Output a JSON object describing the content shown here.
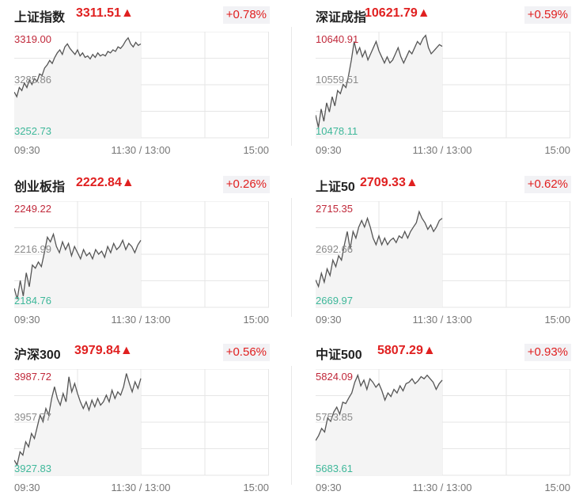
{
  "x_axis": {
    "start": "09:30",
    "mid": "11:30 / 13:00",
    "end": "15:00"
  },
  "colors": {
    "up": "#e02020",
    "line": "#555555",
    "grid": "#e6e6e6",
    "fill": "#f4f4f4"
  },
  "cards": [
    {
      "name": "上证指数",
      "price": "3311.51",
      "arrow": "▲",
      "change": "+0.78%",
      "y_top": "3319.00",
      "y_mid": "3285.86",
      "y_bot": "3252.73",
      "series": [
        3281,
        3278,
        3284,
        3282,
        3287,
        3284,
        3289,
        3286,
        3290,
        3288,
        3293,
        3292,
        3297,
        3299,
        3302,
        3300,
        3304,
        3307,
        3309,
        3306,
        3311,
        3313,
        3310,
        3308,
        3306,
        3309,
        3305,
        3307,
        3304,
        3305,
        3303,
        3306,
        3304,
        3307,
        3305,
        3306,
        3305,
        3308,
        3307,
        3309,
        3308,
        3311,
        3310,
        3312,
        3315,
        3317,
        3313,
        3311,
        3314,
        3312,
        3313
      ]
    },
    {
      "name": "深证成指",
      "price": "10621.79",
      "arrow": "▲",
      "change": "+0.59%",
      "y_top": "10640.91",
      "y_mid": "10559.51",
      "y_bot": "10478.11",
      "series": [
        10510,
        10490,
        10520,
        10500,
        10530,
        10515,
        10540,
        10525,
        10550,
        10545,
        10560,
        10555,
        10575,
        10600,
        10630,
        10610,
        10620,
        10605,
        10615,
        10600,
        10610,
        10620,
        10630,
        10615,
        10605,
        10595,
        10605,
        10595,
        10600,
        10610,
        10620,
        10605,
        10595,
        10605,
        10615,
        10610,
        10620,
        10630,
        10625,
        10635,
        10640,
        10620,
        10610,
        10615,
        10620,
        10625,
        10622
      ]
    },
    {
      "name": "创业板指",
      "price": "2222.84",
      "arrow": "▲",
      "change": "+0.26%",
      "y_top": "2249.22",
      "y_mid": "2216.99",
      "y_bot": "2184.76",
      "series": [
        2195,
        2188,
        2200,
        2190,
        2205,
        2196,
        2210,
        2208,
        2212,
        2209,
        2218,
        2228,
        2225,
        2230,
        2222,
        2218,
        2225,
        2220,
        2224,
        2216,
        2222,
        2218,
        2214,
        2220,
        2216,
        2218,
        2214,
        2220,
        2217,
        2219,
        2215,
        2222,
        2218,
        2224,
        2220,
        2222,
        2226,
        2220,
        2224,
        2222,
        2218,
        2223,
        2226
      ]
    },
    {
      "name": "上证50",
      "price": "2709.33",
      "arrow": "▲",
      "change": "+0.62%",
      "y_top": "2715.35",
      "y_mid": "2692.66",
      "y_bot": "2669.97",
      "series": [
        2681,
        2678,
        2684,
        2680,
        2686,
        2683,
        2690,
        2687,
        2692,
        2690,
        2697,
        2703,
        2695,
        2703,
        2700,
        2705,
        2708,
        2705,
        2709,
        2705,
        2700,
        2697,
        2701,
        2697,
        2700,
        2697,
        2699,
        2700,
        2698,
        2701,
        2700,
        2703,
        2700,
        2703,
        2705,
        2707,
        2712,
        2709,
        2707,
        2704,
        2706,
        2703,
        2705,
        2708,
        2709
      ]
    },
    {
      "name": "沪深300",
      "price": "3979.84",
      "arrow": "▲",
      "change": "+0.56%",
      "y_top": "3987.72",
      "y_mid": "3957.77",
      "y_bot": "3927.83",
      "series": [
        3935,
        3932,
        3940,
        3938,
        3946,
        3943,
        3951,
        3948,
        3955,
        3962,
        3958,
        3966,
        3962,
        3972,
        3979,
        3972,
        3968,
        3975,
        3970,
        3985,
        3976,
        3981,
        3975,
        3970,
        3966,
        3970,
        3965,
        3971,
        3967,
        3972,
        3968,
        3970,
        3974,
        3970,
        3977,
        3972,
        3976,
        3974,
        3979,
        3987,
        3981,
        3976,
        3982,
        3978,
        3984
      ]
    },
    {
      "name": "中证500",
      "price": "5807.29",
      "arrow": "▲",
      "change": "+0.93%",
      "y_top": "5824.09",
      "y_mid": "5753.85",
      "y_bot": "5683.61",
      "series": [
        5728,
        5735,
        5745,
        5740,
        5760,
        5755,
        5768,
        5775,
        5765,
        5782,
        5780,
        5788,
        5795,
        5810,
        5820,
        5805,
        5813,
        5800,
        5815,
        5810,
        5803,
        5808,
        5798,
        5785,
        5795,
        5790,
        5800,
        5795,
        5805,
        5798,
        5808,
        5810,
        5815,
        5808,
        5812,
        5818,
        5815,
        5820,
        5815,
        5810,
        5800,
        5808,
        5813
      ]
    }
  ]
}
